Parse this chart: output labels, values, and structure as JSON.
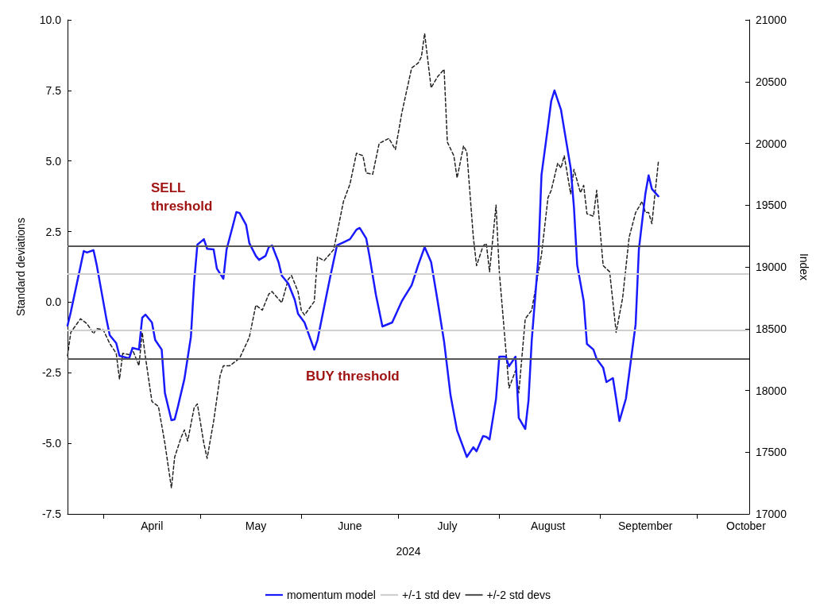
{
  "chart_data": {
    "type": "line",
    "xlabel": "2024",
    "ylabel": "Standard deviations",
    "y2label": "Index",
    "xlim": [
      "2024-03-21",
      "2024-10-17"
    ],
    "xticks": [
      {
        "value": "2024-04-01",
        "label": null
      },
      {
        "value": "2024-04-16",
        "label": "April"
      },
      {
        "value": "2024-05-01",
        "label": null
      },
      {
        "value": "2024-05-18",
        "label": "May"
      },
      {
        "value": "2024-06-01",
        "label": null
      },
      {
        "value": "2024-06-16",
        "label": "June"
      },
      {
        "value": "2024-07-01",
        "label": null
      },
      {
        "value": "2024-07-16",
        "label": "July"
      },
      {
        "value": "2024-08-01",
        "label": null
      },
      {
        "value": "2024-08-16",
        "label": "August"
      },
      {
        "value": "2024-09-01",
        "label": null
      },
      {
        "value": "2024-09-15",
        "label": "September"
      },
      {
        "value": "2024-10-01",
        "label": null
      },
      {
        "value": "2024-10-16",
        "label": "October"
      }
    ],
    "ylim": [
      -7.5,
      10
    ],
    "yticks": [
      {
        "value": -7.5,
        "label": "-7.5"
      },
      {
        "value": -5,
        "label": "-5.0"
      },
      {
        "value": -2.5,
        "label": "-2.5"
      },
      {
        "value": 0,
        "label": "0.0"
      },
      {
        "value": 2.5,
        "label": "2.5"
      },
      {
        "value": 5,
        "label": "5.0"
      },
      {
        "value": 7.5,
        "label": "7.5"
      },
      {
        "value": 10,
        "label": "10.0"
      }
    ],
    "y2lim": [
      17000,
      21000
    ],
    "y2ticks": [
      17000,
      17500,
      18000,
      18500,
      19000,
      19500,
      20000,
      20500,
      21000
    ],
    "grid": false,
    "legend": "bottom",
    "marker": "none",
    "series": [
      {
        "axis": "y2",
        "color": "#222222",
        "line_style": "dashed",
        "x": [
          "2024-03-21",
          "2024-03-22",
          "2024-03-25",
          "2024-03-27",
          "2024-03-29",
          "2024-03-30",
          "2024-04-01",
          "2024-04-03",
          "2024-04-05",
          "2024-04-06",
          "2024-04-07",
          "2024-04-09",
          "2024-04-10",
          "2024-04-12",
          "2024-04-13",
          "2024-04-14",
          "2024-04-16",
          "2024-04-18",
          "2024-04-20",
          "2024-04-22",
          "2024-04-23",
          "2024-04-25",
          "2024-04-26",
          "2024-04-27",
          "2024-04-29",
          "2024-04-30",
          "2024-05-02",
          "2024-05-03",
          "2024-05-05",
          "2024-05-07",
          "2024-05-08",
          "2024-05-10",
          "2024-05-13",
          "2024-05-16",
          "2024-05-18",
          "2024-05-20",
          "2024-05-22",
          "2024-05-23",
          "2024-05-26",
          "2024-05-28",
          "2024-05-29",
          "2024-05-31",
          "2024-06-01",
          "2024-06-02",
          "2024-06-05",
          "2024-06-06",
          "2024-06-08",
          "2024-06-11",
          "2024-06-14",
          "2024-06-16",
          "2024-06-18",
          "2024-06-20",
          "2024-06-21",
          "2024-06-23",
          "2024-06-25",
          "2024-06-28",
          "2024-06-30",
          "2024-07-02",
          "2024-07-05",
          "2024-07-07",
          "2024-07-08",
          "2024-07-09",
          "2024-07-11",
          "2024-07-13",
          "2024-07-15",
          "2024-07-16",
          "2024-07-18",
          "2024-07-19",
          "2024-07-21",
          "2024-07-22",
          "2024-07-24",
          "2024-07-25",
          "2024-07-27",
          "2024-07-28",
          "2024-07-29",
          "2024-07-31",
          "2024-08-01",
          "2024-08-04",
          "2024-08-06",
          "2024-08-07",
          "2024-08-09",
          "2024-08-11",
          "2024-08-14",
          "2024-08-16",
          "2024-08-17",
          "2024-08-19",
          "2024-08-20",
          "2024-08-21",
          "2024-08-23",
          "2024-08-24",
          "2024-08-26",
          "2024-08-27",
          "2024-08-28",
          "2024-08-30",
          "2024-08-31",
          "2024-09-02",
          "2024-09-04",
          "2024-09-06",
          "2024-09-08",
          "2024-09-10",
          "2024-09-12",
          "2024-09-14",
          "2024-09-15",
          "2024-09-16",
          "2024-09-17",
          "2024-09-19"
        ],
        "values": [
          18280,
          18470,
          18580,
          18540,
          18460,
          18500,
          18490,
          18380,
          18300,
          18090,
          18300,
          18290,
          18330,
          18200,
          18470,
          18270,
          17910,
          17870,
          17570,
          17210,
          17460,
          17620,
          17680,
          17590,
          17860,
          17890,
          17570,
          17450,
          17750,
          18120,
          18200,
          18200,
          18260,
          18430,
          18690,
          18650,
          18780,
          18800,
          18710,
          18900,
          18930,
          18800,
          18650,
          18610,
          18720,
          19080,
          19050,
          19140,
          19530,
          19670,
          19920,
          19900,
          19760,
          19750,
          20000,
          20040,
          19950,
          20250,
          20610,
          20650,
          20700,
          20890,
          20450,
          20540,
          20600,
          20010,
          19900,
          19720,
          19980,
          19930,
          19240,
          19010,
          19170,
          19190,
          18960,
          19500,
          18960,
          18020,
          18160,
          17980,
          18580,
          18650,
          19100,
          19560,
          19620,
          19840,
          19800,
          19900,
          19590,
          19790,
          19600,
          19660,
          19430,
          19410,
          19620,
          19010,
          18960,
          18470,
          18750,
          19240,
          19440,
          19530,
          19440,
          19440,
          19350,
          19850
        ]
      },
      {
        "name": "momentum model",
        "color": "#1a1aff",
        "line_style": "solid",
        "x": [
          "2024-03-21",
          "2024-03-22",
          "2024-03-26",
          "2024-03-27",
          "2024-03-29",
          "2024-03-30",
          "2024-04-02",
          "2024-04-03",
          "2024-04-05",
          "2024-04-06",
          "2024-04-09",
          "2024-04-10",
          "2024-04-12",
          "2024-04-13",
          "2024-04-14",
          "2024-04-16",
          "2024-04-17",
          "2024-04-19",
          "2024-04-20",
          "2024-04-22",
          "2024-04-23",
          "2024-04-24",
          "2024-04-26",
          "2024-04-28",
          "2024-04-29",
          "2024-04-30",
          "2024-05-02",
          "2024-05-03",
          "2024-05-05",
          "2024-05-06",
          "2024-05-08",
          "2024-05-09",
          "2024-05-11",
          "2024-05-12",
          "2024-05-13",
          "2024-05-15",
          "2024-05-16",
          "2024-05-18",
          "2024-05-19",
          "2024-05-21",
          "2024-05-22",
          "2024-05-23",
          "2024-05-25",
          "2024-05-26",
          "2024-05-28",
          "2024-05-30",
          "2024-05-31",
          "2024-06-02",
          "2024-06-05",
          "2024-06-06",
          "2024-06-08",
          "2024-06-10",
          "2024-06-12",
          "2024-06-14",
          "2024-06-16",
          "2024-06-18",
          "2024-06-19",
          "2024-06-21",
          "2024-06-22",
          "2024-06-24",
          "2024-06-26",
          "2024-06-29",
          "2024-07-02",
          "2024-07-05",
          "2024-07-07",
          "2024-07-09",
          "2024-07-11",
          "2024-07-13",
          "2024-07-15",
          "2024-07-17",
          "2024-07-19",
          "2024-07-22",
          "2024-07-24",
          "2024-07-25",
          "2024-07-27",
          "2024-07-28",
          "2024-07-29",
          "2024-07-31",
          "2024-08-01",
          "2024-08-03",
          "2024-08-04",
          "2024-08-06",
          "2024-08-07",
          "2024-08-09",
          "2024-08-10",
          "2024-08-11",
          "2024-08-13",
          "2024-08-14",
          "2024-08-16",
          "2024-08-17",
          "2024-08-18",
          "2024-08-20",
          "2024-08-21",
          "2024-08-23",
          "2024-08-24",
          "2024-08-25",
          "2024-08-27",
          "2024-08-28",
          "2024-08-30",
          "2024-08-31",
          "2024-09-02",
          "2024-09-03",
          "2024-09-05",
          "2024-09-06",
          "2024-09-07",
          "2024-09-09",
          "2024-09-12",
          "2024-09-13",
          "2024-09-15",
          "2024-09-16",
          "2024-09-17",
          "2024-09-19"
        ],
        "values": [
          -0.83,
          -0.35,
          1.81,
          1.76,
          1.84,
          1.31,
          -0.61,
          -1.17,
          -1.45,
          -1.9,
          -1.99,
          -1.62,
          -1.68,
          -0.55,
          -0.44,
          -0.72,
          -1.34,
          -1.68,
          -3.22,
          -4.18,
          -4.15,
          -3.7,
          -2.72,
          -1.23,
          0.71,
          2.04,
          2.23,
          1.89,
          1.87,
          1.19,
          0.83,
          1.87,
          2.74,
          3.19,
          3.16,
          2.74,
          2.09,
          1.64,
          1.5,
          1.64,
          1.95,
          2.01,
          1.42,
          0.94,
          0.66,
          0.08,
          -0.41,
          -0.72,
          -1.68,
          -1.34,
          -0.19,
          0.94,
          2.01,
          2.12,
          2.23,
          2.57,
          2.63,
          2.26,
          1.64,
          0.26,
          -0.86,
          -0.72,
          0.04,
          0.6,
          1.31,
          1.95,
          1.42,
          0.04,
          -1.4,
          -3.31,
          -4.55,
          -5.48,
          -5.14,
          -5.28,
          -4.74,
          -4.77,
          -4.86,
          -3.42,
          -1.93,
          -1.93,
          -2.27,
          -1.93,
          -4.1,
          -4.49,
          -3.48,
          -1.34,
          1.53,
          4.51,
          6.23,
          7.13,
          7.5,
          6.82,
          6.12,
          4.74,
          3.36,
          1.31,
          0.04,
          -1.48,
          -1.68,
          -2.01,
          -2.32,
          -2.83,
          -2.69,
          -3.42,
          -4.21,
          -3.42,
          -0.78,
          1.87,
          3.84,
          4.49,
          4.01,
          3.75
        ]
      }
    ],
    "ref_lines": [
      {
        "axis": "y",
        "value": 1,
        "label": "+/-1 std dev",
        "color": "#cfcfcf"
      },
      {
        "axis": "y",
        "value": -1,
        "color": "#cfcfcf"
      },
      {
        "axis": "y",
        "value": 2,
        "label": "+/-2 std devs",
        "color": "#555555"
      },
      {
        "axis": "y",
        "value": -2,
        "color": "#555555"
      }
    ],
    "annotations": [
      "SELL\nthreshold",
      "BUY threshold"
    ]
  }
}
